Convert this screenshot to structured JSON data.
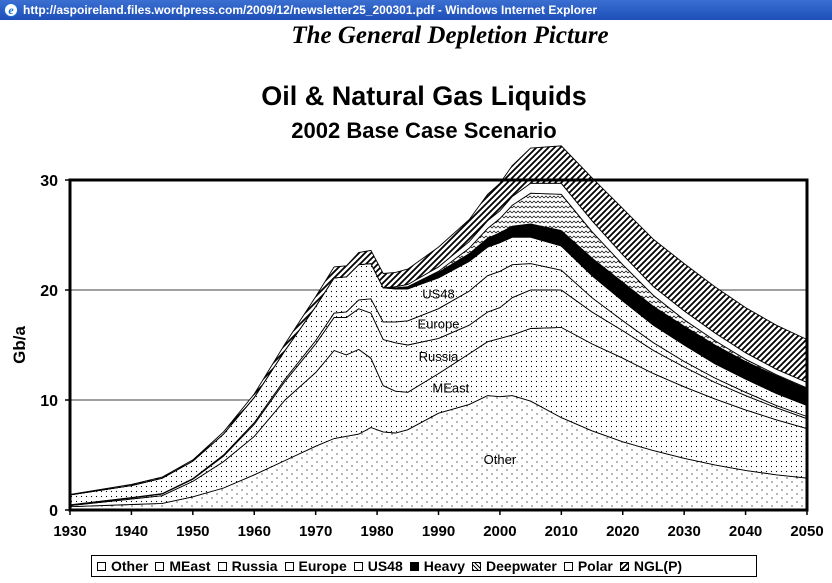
{
  "window": {
    "title": "http://aspoireland.files.wordpress.com/2009/12/newsletter25_200301.pdf - Windows Internet Explorer",
    "icon": "ie-icon"
  },
  "document": {
    "heading": "The General Depletion Picture"
  },
  "chart_data": {
    "type": "area",
    "title": "Oil & Natural Gas Liquids",
    "subtitle": "2002 Base Case Scenario",
    "ylabel": "Gb/a",
    "xlabel": "",
    "xlim": [
      1930,
      2050
    ],
    "ylim": [
      0,
      30
    ],
    "x_ticks": [
      "1930",
      "1940",
      "1950",
      "1960",
      "1970",
      "1980",
      "1990",
      "2000",
      "2010",
      "2020",
      "2030",
      "2040",
      "2050"
    ],
    "y_ticks": [
      "0",
      "10",
      "20",
      "30"
    ],
    "grid": "horizontal",
    "legend_position": "bottom",
    "x": [
      1930,
      1940,
      1945,
      1950,
      1955,
      1960,
      1965,
      1970,
      1973,
      1975,
      1977,
      1979,
      1981,
      1983,
      1985,
      1990,
      1995,
      1998,
      2000,
      2002,
      2005,
      2010,
      2015,
      2020,
      2025,
      2030,
      2035,
      2040,
      2045,
      2050
    ],
    "series": [
      {
        "name": "Other",
        "fill": "dots-sparse",
        "values": [
          0.3,
          0.5,
          0.6,
          1.2,
          2.0,
          3.2,
          4.5,
          5.8,
          6.5,
          6.7,
          6.9,
          7.5,
          7.1,
          7.0,
          7.3,
          8.8,
          9.6,
          10.4,
          10.3,
          10.4,
          9.9,
          8.4,
          7.2,
          6.2,
          5.4,
          4.7,
          4.1,
          3.6,
          3.2,
          2.9
        ]
      },
      {
        "name": "MEast",
        "fill": "dots",
        "values": [
          0.1,
          0.5,
          0.7,
          1.4,
          2.4,
          3.5,
          5.5,
          6.7,
          8.0,
          7.4,
          7.7,
          6.3,
          4.2,
          3.8,
          3.4,
          3.6,
          4.6,
          4.9,
          5.3,
          5.5,
          6.6,
          8.2,
          7.9,
          7.6,
          7.0,
          6.5,
          6.0,
          5.5,
          5.0,
          4.5
        ]
      },
      {
        "name": "Russia",
        "fill": "dots",
        "values": [
          0.05,
          0.1,
          0.15,
          0.2,
          0.5,
          1.1,
          1.7,
          2.6,
          3.0,
          3.4,
          3.7,
          4.1,
          4.2,
          4.4,
          4.3,
          3.2,
          2.6,
          2.7,
          2.8,
          3.4,
          3.5,
          3.4,
          2.9,
          2.5,
          2.1,
          1.8,
          1.5,
          1.3,
          1.1,
          0.9
        ]
      },
      {
        "name": "Europe",
        "fill": "dots",
        "values": [
          0.02,
          0.03,
          0.04,
          0.05,
          0.1,
          0.15,
          0.2,
          0.3,
          0.4,
          0.5,
          0.8,
          1.3,
          1.6,
          1.9,
          2.2,
          2.7,
          3.1,
          3.3,
          3.3,
          3.0,
          2.4,
          1.8,
          1.3,
          0.9,
          0.7,
          0.5,
          0.4,
          0.3,
          0.2,
          0.2
        ]
      },
      {
        "name": "US48",
        "fill": "dots",
        "values": [
          0.9,
          1.1,
          1.4,
          1.6,
          1.9,
          2.3,
          2.6,
          3.1,
          3.2,
          3.2,
          3.2,
          3.2,
          3.1,
          3.0,
          2.9,
          2.8,
          2.7,
          2.6,
          2.6,
          2.5,
          2.4,
          2.2,
          2.0,
          1.8,
          1.6,
          1.5,
          1.3,
          1.2,
          1.1,
          1.0
        ]
      },
      {
        "name": "Heavy",
        "fill": "solid",
        "values": [
          0,
          0,
          0,
          0,
          0,
          0,
          0,
          0,
          0,
          0,
          0,
          0,
          0,
          0.1,
          0.2,
          0.5,
          0.7,
          0.8,
          0.9,
          1.0,
          1.2,
          1.4,
          1.6,
          1.7,
          1.7,
          1.7,
          1.7,
          1.6,
          1.6,
          1.5
        ]
      },
      {
        "name": "Deepwater",
        "fill": "wave",
        "values": [
          0,
          0,
          0,
          0,
          0,
          0,
          0,
          0,
          0,
          0,
          0,
          0,
          0,
          0,
          0,
          0.1,
          0.5,
          0.9,
          1.3,
          1.9,
          2.8,
          3.3,
          2.4,
          1.6,
          1.0,
          0.6,
          0.4,
          0.2,
          0.1,
          0.1
        ]
      },
      {
        "name": "Polar",
        "fill": "white",
        "values": [
          0,
          0,
          0,
          0,
          0,
          0,
          0,
          0,
          0,
          0,
          0,
          0,
          0,
          0.1,
          0.2,
          0.4,
          0.6,
          0.7,
          0.7,
          0.8,
          0.9,
          1.0,
          1.0,
          0.9,
          0.8,
          0.8,
          0.7,
          0.6,
          0.5,
          0.5
        ]
      },
      {
        "name": "NGL(P)",
        "fill": "diagonal",
        "values": [
          0.05,
          0.1,
          0.1,
          0.1,
          0.2,
          0.3,
          0.6,
          0.9,
          1.0,
          1.0,
          1.1,
          1.2,
          1.3,
          1.3,
          1.4,
          1.8,
          2.0,
          2.4,
          2.5,
          2.8,
          3.2,
          3.4,
          3.9,
          4.2,
          4.3,
          4.3,
          4.2,
          4.1,
          4.0,
          3.9
        ]
      }
    ],
    "in_chart_labels": [
      "Other",
      "MEast",
      "Russia",
      "Europe",
      "US48"
    ]
  }
}
